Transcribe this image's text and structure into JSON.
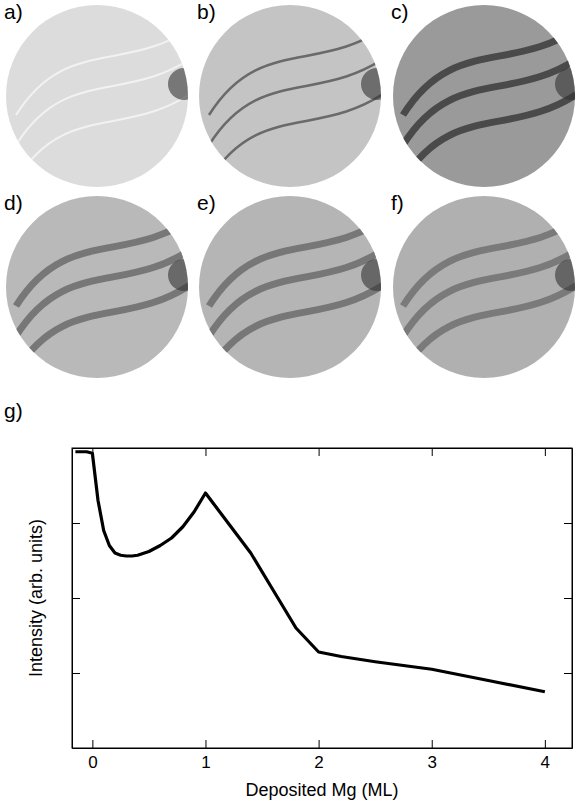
{
  "chart_data": {
    "type": "line",
    "annotations": [
      "a)",
      "b)",
      "c)",
      "d)",
      "e)",
      "f)",
      "g)"
    ],
    "x_label": "Deposited Mg (ML)",
    "y_label": "Intensity (arb. units)",
    "x": [
      -0.15,
      -0.05,
      0,
      0.05,
      0.1,
      0.15,
      0.2,
      0.25,
      0.3,
      0.35,
      0.4,
      0.5,
      0.6,
      0.7,
      0.8,
      0.9,
      1.0,
      1.1,
      1.2,
      1.4,
      1.6,
      1.8,
      2.0,
      2.2,
      2.5,
      3.0,
      3.5,
      4.0
    ],
    "values": [
      3.95,
      3.95,
      3.93,
      3.3,
      2.9,
      2.7,
      2.6,
      2.57,
      2.56,
      2.56,
      2.57,
      2.62,
      2.7,
      2.8,
      2.95,
      3.15,
      3.4,
      3.2,
      3.0,
      2.6,
      2.1,
      1.6,
      1.28,
      1.22,
      1.15,
      1.05,
      0.9,
      0.75
    ],
    "color": "#000000",
    "xlim": [
      -0.18,
      4.24
    ],
    "ylim": [
      0,
      4
    ],
    "xticks": [
      0,
      1,
      2,
      3,
      4
    ],
    "yticks": [
      1,
      2,
      3
    ],
    "tick_labels": "x",
    "grid": false
  }
}
